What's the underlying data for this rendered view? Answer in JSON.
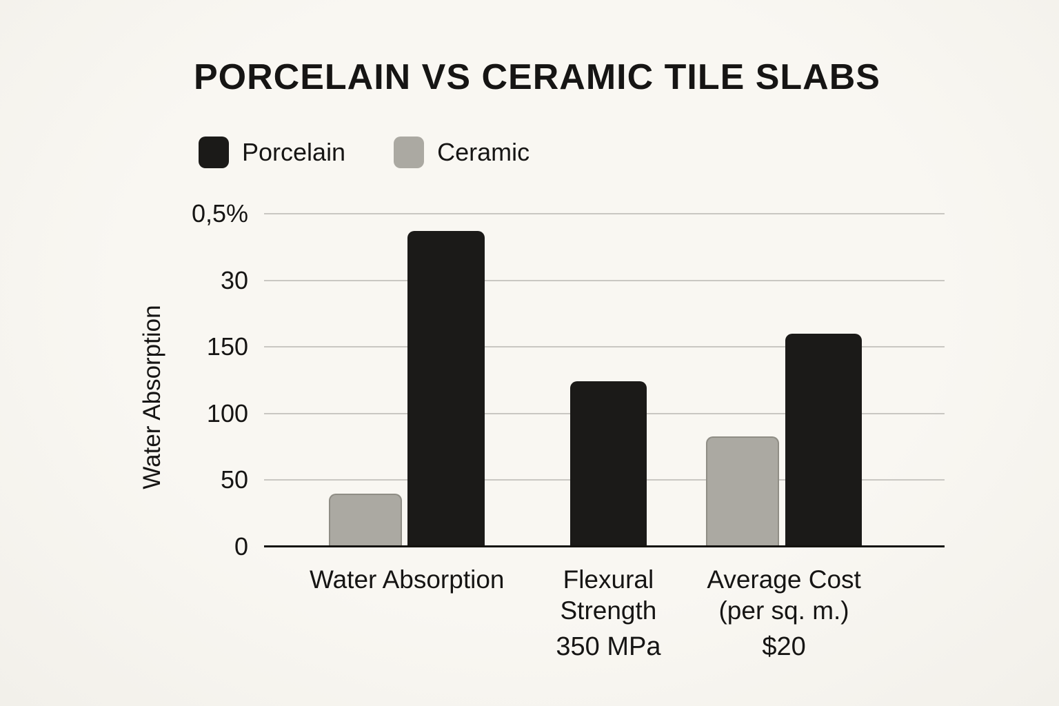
{
  "chart_data": {
    "type": "bar",
    "title": "PORCELAIN VS CERAMIC TILE SLABS",
    "ylabel": "Water Absorption",
    "xlabel": "",
    "grid": true,
    "legend_position": "top-left",
    "background_color": "#f7f5f0",
    "text_color": "#161514",
    "gridline_color": "#c9c7c2",
    "axis_line_color": "#14130f",
    "y_ticks_bottom_to_top": [
      "0",
      "50",
      "100",
      "150",
      "30",
      "0,5%"
    ],
    "y_axis_unit_max": 250,
    "legend": [
      {
        "name": "Porcelain",
        "color": "#1b1a18"
      },
      {
        "name": "Ceramic",
        "color": "#aba9a2"
      }
    ],
    "series_colors": {
      "Porcelain": "#1b1a18",
      "Ceramic": "#aba9a2"
    },
    "groups": [
      {
        "label_lines": [
          "Water Absorption"
        ],
        "sub_label": "",
        "center_pct": 21.0,
        "bars": [
          {
            "series": "Ceramic",
            "value": 40,
            "left_pct": 9.5,
            "width_pct": 10.8
          },
          {
            "series": "Porcelain",
            "value": 237,
            "left_pct": 21.1,
            "width_pct": 11.3
          }
        ]
      },
      {
        "label_lines": [
          "Flexural",
          "Strength"
        ],
        "sub_label": "350 MPa",
        "center_pct": 50.6,
        "bars": [
          {
            "series": "Porcelain",
            "value": 124,
            "left_pct": 45.0,
            "width_pct": 11.2
          }
        ]
      },
      {
        "label_lines": [
          "Average Cost",
          "(per sq. m.)"
        ],
        "sub_label": "$20",
        "center_pct": 76.4,
        "bars": [
          {
            "series": "Ceramic",
            "value": 83,
            "left_pct": 64.9,
            "width_pct": 10.8
          },
          {
            "series": "Porcelain",
            "value": 160,
            "left_pct": 76.6,
            "width_pct": 11.2
          }
        ]
      }
    ]
  }
}
